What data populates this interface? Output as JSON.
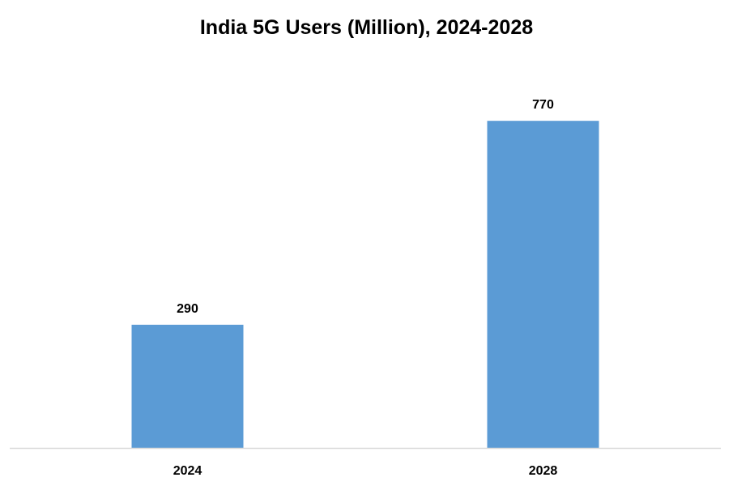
{
  "chart_data": {
    "type": "bar",
    "title": "India 5G Users (Million), 2024-2028",
    "categories": [
      "2024",
      "2028"
    ],
    "values": [
      290,
      770
    ],
    "xlabel": "",
    "ylabel": "",
    "ylim": [
      0,
      900
    ],
    "grid": false,
    "legend": "none",
    "bar_color": "#5B9BD5",
    "axis_color": "#D9D9D9"
  }
}
